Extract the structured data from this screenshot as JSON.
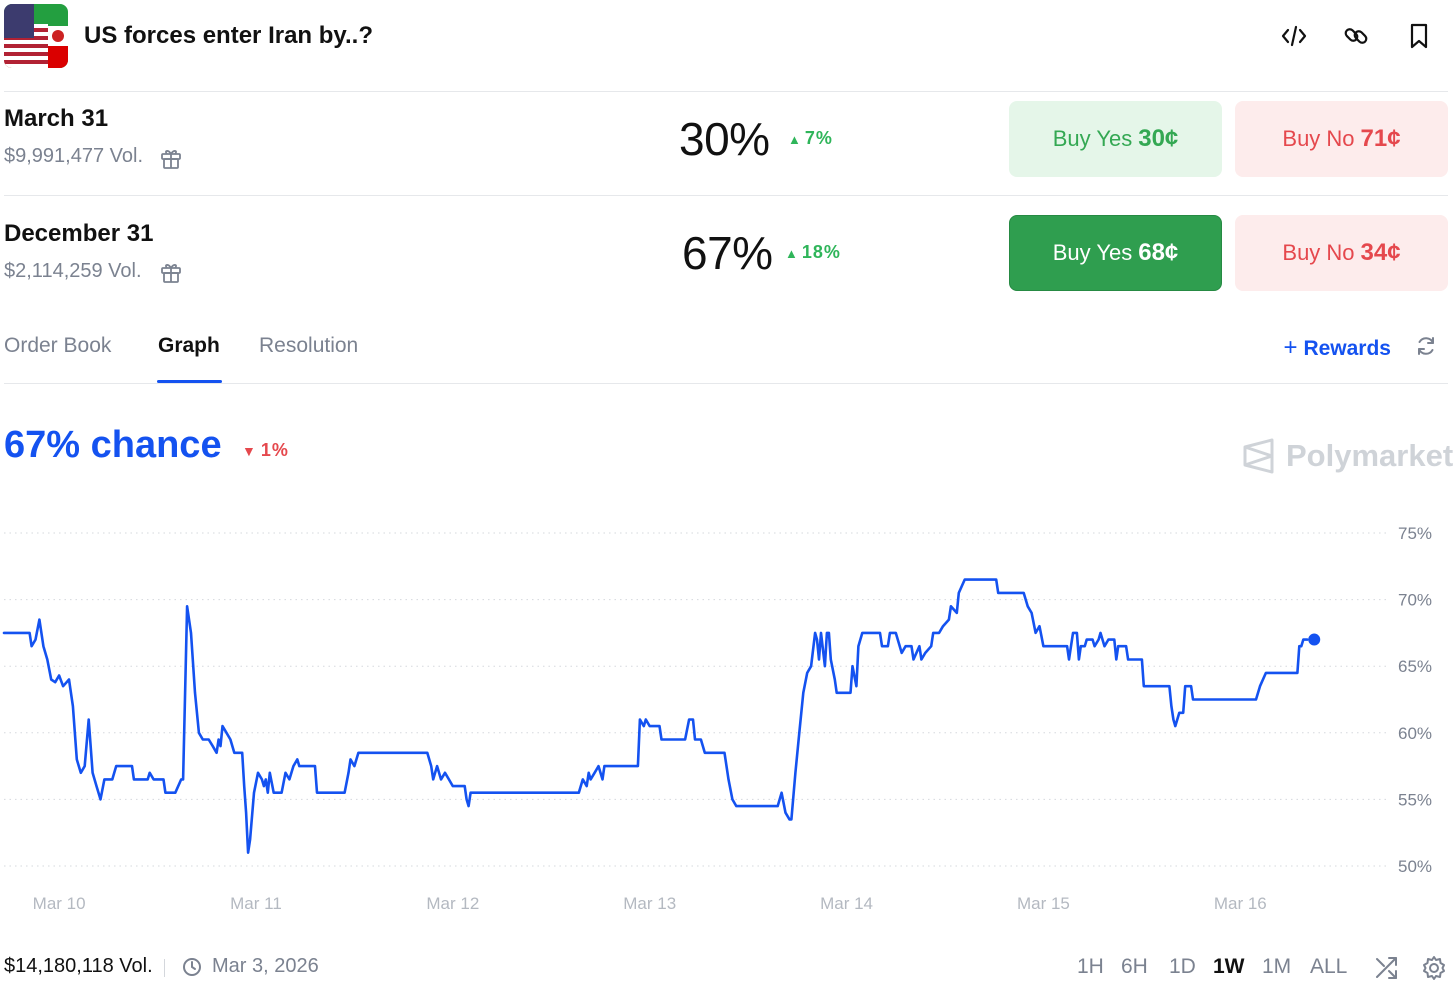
{
  "header": {
    "title": "US forces enter Iran by..?"
  },
  "markets": [
    {
      "name": "March 31",
      "volume": "$9,991,477 Vol.",
      "percent": "30%",
      "change": "7%",
      "buy_yes_label": "Buy Yes",
      "buy_yes_price": "30¢",
      "buy_no_label": "Buy No",
      "buy_no_price": "71¢"
    },
    {
      "name": "December 31",
      "volume": "$2,114,259 Vol.",
      "percent": "67%",
      "change": "18%",
      "buy_yes_label": "Buy Yes",
      "buy_yes_price": "68¢",
      "buy_no_label": "Buy No",
      "buy_no_price": "34¢"
    }
  ],
  "tabs": [
    {
      "label": "Order Book"
    },
    {
      "label": "Graph"
    },
    {
      "label": "Resolution"
    }
  ],
  "rewards_label": "Rewards",
  "chance": {
    "label": "67% chance",
    "change": "1%"
  },
  "logo_text": "Polymarket",
  "colors": {
    "accent": "#1452f0",
    "up": "#2fb55a",
    "down": "#e5484d",
    "yes_solid": "#2f9e4f"
  },
  "chart_data": {
    "type": "line",
    "x_ticks": [
      "Mar 10",
      "Mar 11",
      "Mar 12",
      "Mar 13",
      "Mar 14",
      "Mar 15",
      "Mar 16"
    ],
    "y_ticks": [
      "50%",
      "55%",
      "60%",
      "65%",
      "70%",
      "75%"
    ],
    "ylim": [
      50,
      75
    ],
    "xlim": [
      9.72,
      16.73
    ],
    "grid": true,
    "series": [
      {
        "points": [
          [
            9.72,
            67.5
          ],
          [
            9.85,
            67.5
          ],
          [
            9.86,
            66.5
          ],
          [
            9.88,
            67.0
          ],
          [
            9.9,
            68.5
          ],
          [
            9.92,
            66.5
          ],
          [
            9.94,
            65.5
          ],
          [
            9.96,
            64.0
          ],
          [
            9.98,
            63.8
          ],
          [
            10.0,
            64.3
          ],
          [
            10.02,
            63.5
          ],
          [
            10.05,
            64.0
          ],
          [
            10.07,
            62.0
          ],
          [
            10.09,
            58.0
          ],
          [
            10.11,
            57.0
          ],
          [
            10.13,
            57.5
          ],
          [
            10.15,
            61.0
          ],
          [
            10.17,
            57.0
          ],
          [
            10.19,
            56.0
          ],
          [
            10.21,
            55.0
          ],
          [
            10.23,
            56.5
          ],
          [
            10.27,
            56.5
          ],
          [
            10.29,
            57.5
          ],
          [
            10.37,
            57.5
          ],
          [
            10.38,
            56.5
          ],
          [
            10.45,
            56.5
          ],
          [
            10.46,
            57.0
          ],
          [
            10.48,
            56.5
          ],
          [
            10.53,
            56.5
          ],
          [
            10.54,
            55.5
          ],
          [
            10.59,
            55.5
          ],
          [
            10.62,
            56.5
          ],
          [
            10.63,
            56.5
          ],
          [
            10.65,
            69.5
          ],
          [
            10.67,
            67.5
          ],
          [
            10.69,
            63.0
          ],
          [
            10.71,
            60.0
          ],
          [
            10.73,
            59.5
          ],
          [
            10.76,
            59.5
          ],
          [
            10.78,
            59.0
          ],
          [
            10.8,
            58.5
          ],
          [
            10.81,
            59.5
          ],
          [
            10.82,
            59.0
          ],
          [
            10.83,
            60.5
          ],
          [
            10.85,
            60.0
          ],
          [
            10.87,
            59.5
          ],
          [
            10.89,
            58.5
          ],
          [
            10.93,
            58.5
          ],
          [
            10.94,
            56.0
          ],
          [
            10.95,
            54.0
          ],
          [
            10.96,
            51.0
          ],
          [
            10.97,
            52.0
          ],
          [
            10.99,
            55.5
          ],
          [
            11.01,
            57.0
          ],
          [
            11.03,
            56.5
          ],
          [
            11.04,
            56.0
          ],
          [
            11.05,
            56.5
          ],
          [
            11.06,
            55.5
          ],
          [
            11.07,
            57.0
          ],
          [
            11.09,
            55.5
          ],
          [
            11.13,
            55.5
          ],
          [
            11.15,
            57.0
          ],
          [
            11.17,
            56.5
          ],
          [
            11.19,
            57.5
          ],
          [
            11.21,
            58.0
          ],
          [
            11.22,
            57.5
          ],
          [
            11.3,
            57.5
          ],
          [
            11.31,
            55.5
          ],
          [
            11.45,
            55.5
          ],
          [
            11.47,
            57.0
          ],
          [
            11.48,
            58.0
          ],
          [
            11.5,
            57.5
          ],
          [
            11.52,
            58.5
          ],
          [
            11.87,
            58.5
          ],
          [
            11.89,
            57.5
          ],
          [
            11.9,
            56.5
          ],
          [
            11.91,
            57.0
          ],
          [
            11.92,
            57.5
          ],
          [
            11.94,
            56.5
          ],
          [
            11.96,
            57.0
          ],
          [
            11.98,
            56.5
          ],
          [
            12.0,
            56.0
          ],
          [
            12.06,
            56.0
          ],
          [
            12.07,
            55.0
          ],
          [
            12.08,
            54.5
          ],
          [
            12.09,
            55.5
          ],
          [
            12.64,
            55.5
          ],
          [
            12.66,
            56.5
          ],
          [
            12.68,
            56.0
          ],
          [
            12.69,
            57.0
          ],
          [
            12.7,
            56.5
          ],
          [
            12.72,
            57.0
          ],
          [
            12.74,
            57.5
          ],
          [
            12.76,
            56.5
          ],
          [
            12.77,
            57.5
          ],
          [
            12.94,
            57.5
          ],
          [
            12.95,
            61.0
          ],
          [
            12.97,
            60.5
          ],
          [
            12.98,
            61.0
          ],
          [
            13.0,
            60.5
          ],
          [
            13.05,
            60.5
          ],
          [
            13.06,
            59.5
          ],
          [
            13.18,
            59.5
          ],
          [
            13.2,
            61.0
          ],
          [
            13.22,
            61.0
          ],
          [
            13.23,
            59.5
          ],
          [
            13.26,
            59.5
          ],
          [
            13.28,
            58.5
          ],
          [
            13.38,
            58.5
          ],
          [
            13.4,
            56.5
          ],
          [
            13.42,
            55.0
          ],
          [
            13.44,
            54.5
          ],
          [
            13.65,
            54.5
          ],
          [
            13.67,
            55.5
          ],
          [
            13.69,
            54.0
          ],
          [
            13.71,
            53.5
          ],
          [
            13.72,
            53.5
          ],
          [
            13.74,
            57.0
          ],
          [
            13.76,
            60.0
          ],
          [
            13.78,
            63.0
          ],
          [
            13.8,
            64.5
          ],
          [
            13.82,
            65.0
          ],
          [
            13.84,
            67.5
          ],
          [
            13.85,
            67.0
          ],
          [
            13.86,
            65.5
          ],
          [
            13.87,
            67.5
          ],
          [
            13.89,
            65.0
          ],
          [
            13.9,
            67.5
          ],
          [
            13.91,
            67.5
          ],
          [
            13.92,
            65.5
          ],
          [
            13.94,
            64.0
          ],
          [
            13.95,
            63.0
          ],
          [
            14.02,
            63.0
          ],
          [
            14.03,
            65.0
          ],
          [
            14.05,
            63.5
          ],
          [
            14.06,
            66.5
          ],
          [
            14.08,
            67.5
          ],
          [
            14.17,
            67.5
          ],
          [
            14.18,
            66.5
          ],
          [
            14.21,
            66.5
          ],
          [
            14.22,
            67.5
          ],
          [
            14.25,
            67.5
          ],
          [
            14.28,
            66.0
          ],
          [
            14.3,
            66.5
          ],
          [
            14.33,
            66.5
          ],
          [
            14.34,
            65.5
          ],
          [
            14.37,
            66.5
          ],
          [
            14.38,
            65.5
          ],
          [
            14.4,
            66.0
          ],
          [
            14.43,
            66.5
          ],
          [
            14.44,
            67.5
          ],
          [
            14.47,
            67.5
          ],
          [
            14.49,
            68.0
          ],
          [
            14.52,
            68.5
          ],
          [
            14.53,
            69.5
          ],
          [
            14.56,
            69.0
          ],
          [
            14.57,
            70.5
          ],
          [
            14.6,
            71.5
          ],
          [
            14.76,
            71.5
          ],
          [
            14.77,
            70.5
          ],
          [
            14.9,
            70.5
          ],
          [
            14.92,
            69.5
          ],
          [
            14.94,
            69.0
          ],
          [
            14.96,
            67.5
          ],
          [
            14.98,
            68.0
          ],
          [
            15.0,
            66.5
          ],
          [
            15.12,
            66.5
          ],
          [
            15.13,
            65.5
          ],
          [
            15.15,
            67.5
          ],
          [
            15.17,
            67.5
          ],
          [
            15.18,
            65.5
          ],
          [
            15.19,
            66.5
          ],
          [
            15.21,
            66.5
          ],
          [
            15.22,
            67.0
          ],
          [
            15.25,
            67.0
          ],
          [
            15.26,
            66.5
          ],
          [
            15.28,
            67.0
          ],
          [
            15.29,
            67.5
          ],
          [
            15.31,
            66.5
          ],
          [
            15.33,
            67.0
          ],
          [
            15.36,
            67.0
          ],
          [
            15.37,
            65.5
          ],
          [
            15.38,
            66.5
          ],
          [
            15.42,
            66.5
          ],
          [
            15.43,
            65.5
          ],
          [
            15.45,
            65.5
          ],
          [
            15.5,
            65.5
          ],
          [
            15.51,
            63.5
          ],
          [
            15.64,
            63.5
          ],
          [
            15.65,
            62.0
          ],
          [
            15.66,
            61.0
          ],
          [
            15.67,
            60.5
          ],
          [
            15.69,
            61.5
          ],
          [
            15.71,
            61.5
          ],
          [
            15.72,
            63.5
          ],
          [
            15.75,
            63.5
          ],
          [
            15.76,
            62.5
          ],
          [
            16.08,
            62.5
          ],
          [
            16.1,
            63.5
          ],
          [
            16.13,
            64.5
          ],
          [
            16.29,
            64.5
          ],
          [
            16.3,
            66.5
          ],
          [
            16.31,
            66.5
          ],
          [
            16.32,
            67.0
          ],
          [
            16.34,
            67.0
          ]
        ],
        "color": "#1452f0"
      }
    ]
  },
  "footer": {
    "volume": "$14,180,118 Vol.",
    "date": "Mar 3, 2026",
    "ranges": [
      "1H",
      "6H",
      "1D",
      "1W",
      "1M",
      "ALL"
    ],
    "active_range": "1W"
  }
}
